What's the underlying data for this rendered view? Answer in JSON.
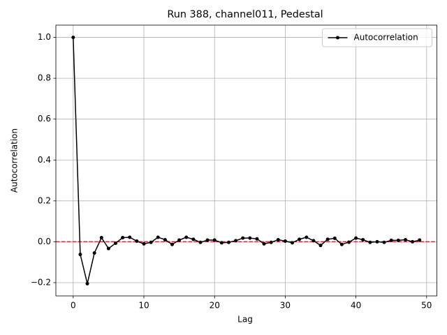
{
  "chart_data": {
    "type": "line",
    "title": "Run 388, channel011, Pedestal",
    "x_label": "Lag",
    "y_label": "Autocorrelation",
    "x": [
      0,
      1,
      2,
      3,
      4,
      5,
      6,
      7,
      8,
      9,
      10,
      11,
      12,
      13,
      14,
      15,
      16,
      17,
      18,
      19,
      20,
      21,
      22,
      23,
      24,
      25,
      26,
      27,
      28,
      29,
      30,
      31,
      32,
      33,
      34,
      35,
      36,
      37,
      38,
      39,
      40,
      41,
      42,
      43,
      44,
      45,
      46,
      47,
      48,
      49
    ],
    "series": [
      {
        "name": "Autocorrelation",
        "color": "#000000",
        "values": [
          1.0,
          -0.062,
          -0.205,
          -0.055,
          0.02,
          -0.033,
          -0.007,
          0.02,
          0.022,
          0.003,
          -0.01,
          -0.003,
          0.022,
          0.01,
          -0.013,
          0.008,
          0.022,
          0.012,
          -0.003,
          0.008,
          0.008,
          -0.005,
          -0.003,
          0.005,
          0.018,
          0.018,
          0.014,
          -0.01,
          -0.003,
          0.01,
          0.003,
          -0.005,
          0.012,
          0.022,
          0.005,
          -0.018,
          0.012,
          0.017,
          -0.013,
          -0.002,
          0.018,
          0.01,
          -0.003,
          0,
          -0.003,
          0.007,
          0.007,
          0.01,
          0,
          0.008
        ]
      }
    ],
    "xlim": [
      -2.45,
      51.45
    ],
    "ylim": [
      -0.265,
      1.06
    ],
    "xticks": [
      0,
      10,
      20,
      30,
      40,
      50
    ],
    "yticks": [
      {
        "value": -0.2,
        "label": "−0.2"
      },
      {
        "value": 0,
        "label": "0.0"
      },
      {
        "value": 0.2,
        "label": "0.2"
      },
      {
        "value": 0.4,
        "label": "0.4"
      },
      {
        "value": 0.6,
        "label": "0.6"
      },
      {
        "value": 0.8,
        "label": "0.8"
      },
      {
        "value": 1.0,
        "label": "1.0"
      }
    ],
    "grid": true,
    "legend": "upper right",
    "reference_line": {
      "y": 0,
      "color": "#d62728",
      "style": "dashed"
    }
  }
}
